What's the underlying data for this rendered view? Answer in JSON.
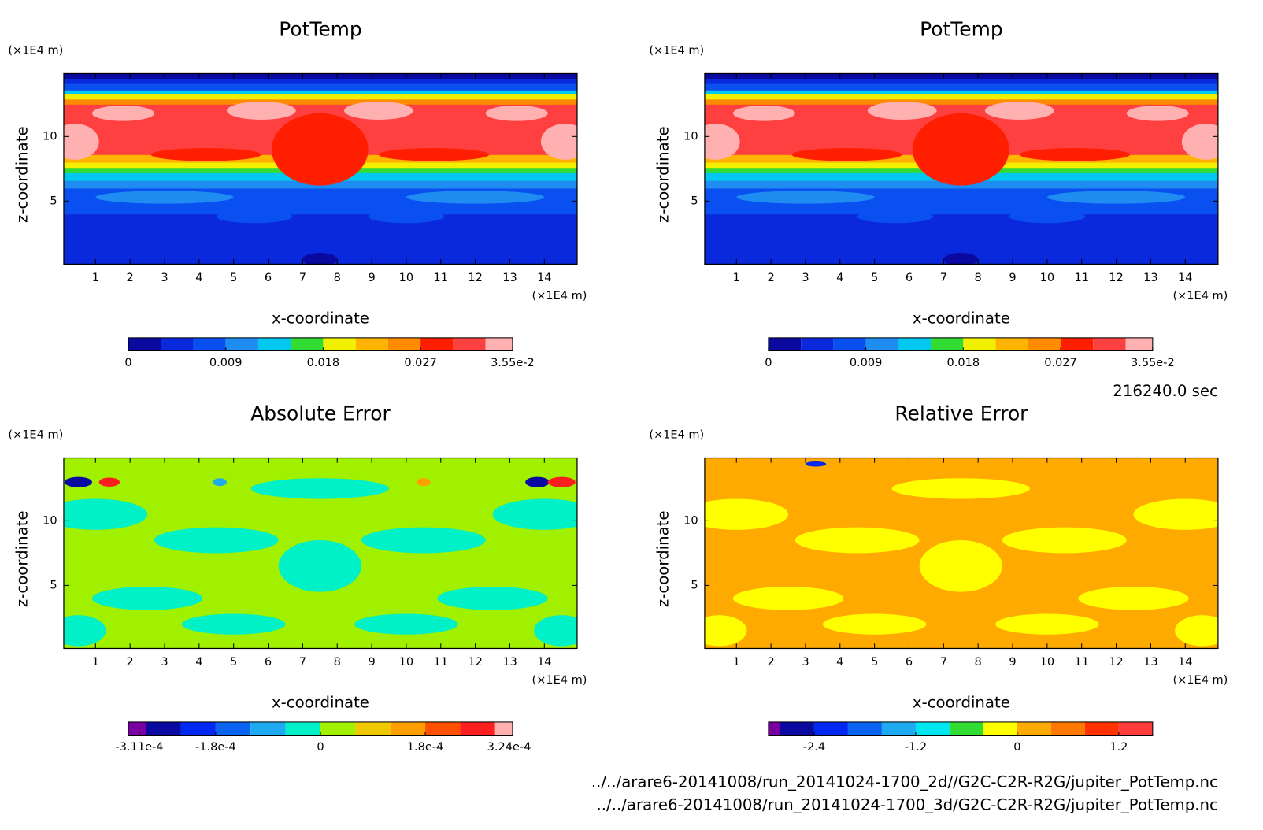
{
  "chart_data": [
    {
      "type": "contour",
      "title": "PotTemp",
      "y_unit": "(×1E4 m)",
      "ylabel": "z-coordinate",
      "x_unit": "(×1E4 m)",
      "xlabel": "x-coordinate",
      "xlim": [
        0.08,
        14.95
      ],
      "ylim": [
        0.12,
        14.87
      ],
      "xticks": [
        1,
        2,
        3,
        4,
        5,
        6,
        7,
        8,
        9,
        10,
        11,
        12,
        13,
        14
      ],
      "yticks": [
        5,
        10
      ],
      "colorbar": {
        "levels": [
          0,
          0.003,
          0.006,
          0.009,
          0.012,
          0.015,
          0.018,
          0.021,
          0.024,
          0.027,
          0.03,
          0.033,
          0.0355
        ],
        "colors": [
          "#0a0aa0",
          "#0a28dc",
          "#0a50f0",
          "#1e8cf0",
          "#00c8f0",
          "#32dc32",
          "#f0f000",
          "#ffb400",
          "#ff8c00",
          "#ff1e00",
          "#ff4040",
          "#ffb0b0"
        ],
        "ticks": [
          0,
          0.009,
          0.018,
          0.027,
          {
            "value": 0.0355,
            "label": "3.55e-2"
          }
        ]
      }
    },
    {
      "type": "contour",
      "title": "PotTemp",
      "y_unit": "(×1E4 m)",
      "ylabel": "z-coordinate",
      "x_unit": "(×1E4 m)",
      "xlabel": "x-coordinate",
      "xlim": [
        0.08,
        14.95
      ],
      "ylim": [
        0.12,
        14.87
      ],
      "xticks": [
        1,
        2,
        3,
        4,
        5,
        6,
        7,
        8,
        9,
        10,
        11,
        12,
        13,
        14
      ],
      "yticks": [
        5,
        10
      ],
      "colorbar": {
        "levels": [
          0,
          0.003,
          0.006,
          0.009,
          0.012,
          0.015,
          0.018,
          0.021,
          0.024,
          0.027,
          0.03,
          0.033,
          0.0355
        ],
        "colors": [
          "#0a0aa0",
          "#0a28dc",
          "#0a50f0",
          "#1e8cf0",
          "#00c8f0",
          "#32dc32",
          "#f0f000",
          "#ffb400",
          "#ff8c00",
          "#ff1e00",
          "#ff4040",
          "#ffb0b0"
        ],
        "ticks": [
          0,
          0.009,
          0.018,
          0.027,
          {
            "value": 0.0355,
            "label": "3.55e-2"
          }
        ]
      }
    },
    {
      "type": "contour",
      "title": "Absolute Error",
      "y_unit": "(×1E4 m)",
      "ylabel": "z-coordinate",
      "x_unit": "(×1E4 m)",
      "xlabel": "x-coordinate",
      "xlim": [
        0.08,
        14.95
      ],
      "ylim": [
        0.12,
        14.87
      ],
      "xticks": [
        1,
        2,
        3,
        4,
        5,
        6,
        7,
        8,
        9,
        10,
        11,
        12,
        13,
        14
      ],
      "yticks": [
        5,
        10
      ],
      "colorbar": {
        "levels": [
          -0.00033,
          -0.0003,
          -0.00024,
          -0.00018,
          -0.00012,
          -6e-05,
          0,
          6e-05,
          0.00012,
          0.00018,
          0.00024,
          0.0003,
          0.00033
        ],
        "colors": [
          "#7800a0",
          "#0a0aa0",
          "#0028f0",
          "#0a64f0",
          "#1eaaf0",
          "#00f0c8",
          "#a0f000",
          "#f0c800",
          "#ffa000",
          "#ff5000",
          "#ff1e1e",
          "#ffb0b0"
        ],
        "ticks": [
          {
            "value": -0.000311,
            "label": "-3.11e-4"
          },
          {
            "value": -0.00018,
            "label": "-1.8e-4"
          },
          0,
          {
            "value": 0.00018,
            "label": "1.8e-4"
          },
          {
            "value": 0.000324,
            "label": "3.24e-4"
          }
        ]
      }
    },
    {
      "type": "contour",
      "title": "Relative Error",
      "y_unit": "(×1E4 m)",
      "ylabel": "z-coordinate",
      "x_unit": "(×1E4 m)",
      "xlabel": "x-coordinate",
      "xlim": [
        0.08,
        14.95
      ],
      "ylim": [
        0.12,
        14.87
      ],
      "xticks": [
        1,
        2,
        3,
        4,
        5,
        6,
        7,
        8,
        9,
        10,
        11,
        12,
        13,
        14
      ],
      "yticks": [
        5,
        10
      ],
      "colorbar": {
        "levels": [
          -2.94,
          -2.8,
          -2.4,
          -2.0,
          -1.6,
          -1.2,
          -0.8,
          -0.4,
          0,
          0.4,
          0.8,
          1.2,
          1.6
        ],
        "colors": [
          "#7800a0",
          "#0a0aa0",
          "#0028f0",
          "#0a64f0",
          "#1eaaf0",
          "#00e6f0",
          "#32dc32",
          "#ffff00",
          "#ffaa00",
          "#ff7800",
          "#ff3200",
          "#ff3c3c"
        ],
        "ticks": [
          -2.4,
          -1.2,
          0,
          1.2
        ]
      }
    }
  ],
  "time": "216240.0 sec",
  "files": [
    "../../arare6-20141008/run_20141024-1700_2d//G2C-C2R-R2G/jupiter_PotTemp.nc",
    "../../arare6-20141008/run_20141024-1700_3d/G2C-C2R-R2G/jupiter_PotTemp.nc"
  ]
}
